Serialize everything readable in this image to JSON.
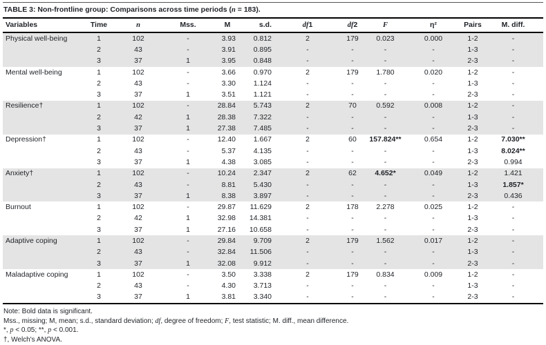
{
  "title": {
    "label": "TABLE 3:",
    "pre": " Non-frontline group: Comparisons across time periods (",
    "n": "n",
    "post": " = 183)."
  },
  "table": {
    "headers": {
      "variables": "Variables",
      "time": "Time",
      "n": "n",
      "mss": "Mss.",
      "m": "M",
      "sd": "s.d.",
      "df": "df",
      "df1_num": "1",
      "df2_num": "2",
      "f": "F",
      "eta": "η²",
      "pairs": "Pairs",
      "mdiff": "M. diff."
    },
    "columns_order": [
      "time",
      "n",
      "mss",
      "m",
      "sd",
      "df1",
      "df2",
      "f",
      "eta2",
      "pairs",
      "mdiff"
    ],
    "groups": [
      {
        "variable": "Physical well-being",
        "shaded": true,
        "rows": [
          [
            "1",
            "102",
            "-",
            "3.93",
            "0.812",
            "2",
            "179",
            "0.023",
            "0.000",
            "1-2",
            "-"
          ],
          [
            "2",
            "43",
            "-",
            "3.91",
            "0.895",
            "-",
            "-",
            "-",
            "-",
            "1-3",
            "-"
          ],
          [
            "3",
            "37",
            "1",
            "3.95",
            "0.848",
            "-",
            "-",
            "-",
            "-",
            "2-3",
            "-"
          ]
        ]
      },
      {
        "variable": "Mental well-being",
        "shaded": false,
        "rows": [
          [
            "1",
            "102",
            "-",
            "3.66",
            "0.970",
            "2",
            "179",
            "1.780",
            "0.020",
            "1-2",
            "-"
          ],
          [
            "2",
            "43",
            "-",
            "3.30",
            "1.124",
            "-",
            "-",
            "-",
            "-",
            "1-3",
            "-"
          ],
          [
            "3",
            "37",
            "1",
            "3.51",
            "1.121",
            "-",
            "-",
            "-",
            "-",
            "2-3",
            "-"
          ]
        ]
      },
      {
        "variable": "Resilience†",
        "shaded": true,
        "rows": [
          [
            "1",
            "102",
            "-",
            "28.84",
            "5.743",
            "2",
            "70",
            "0.592",
            "0.008",
            "1-2",
            "-"
          ],
          [
            "2",
            "42",
            "1",
            "28.38",
            "7.322",
            "-",
            "-",
            "-",
            "-",
            "1-3",
            "-"
          ],
          [
            "3",
            "37",
            "1",
            "27.38",
            "7.485",
            "-",
            "-",
            "-",
            "-",
            "2-3",
            "-"
          ]
        ]
      },
      {
        "variable": "Depression†",
        "shaded": false,
        "rows": [
          [
            "1",
            "102",
            "-",
            "12.40",
            "1.667",
            "2",
            "60",
            {
              "v": "157.824**",
              "b": true
            },
            "0.654",
            "1-2",
            {
              "v": "7.030**",
              "b": true
            }
          ],
          [
            "2",
            "43",
            "-",
            "5.37",
            "4.135",
            "-",
            "-",
            "-",
            "-",
            "1-3",
            {
              "v": "8.024**",
              "b": true
            }
          ],
          [
            "3",
            "37",
            "1",
            "4.38",
            "3.085",
            "-",
            "-",
            "-",
            "-",
            "2-3",
            "0.994"
          ]
        ]
      },
      {
        "variable": "Anxiety†",
        "shaded": true,
        "rows": [
          [
            "1",
            "102",
            "-",
            "10.24",
            "2.347",
            "2",
            "62",
            {
              "v": "4.652*",
              "b": true
            },
            "0.049",
            "1-2",
            "1.421"
          ],
          [
            "2",
            "43",
            "-",
            "8.81",
            "5.430",
            "-",
            "-",
            "-",
            "-",
            "1-3",
            {
              "v": "1.857*",
              "b": true
            }
          ],
          [
            "3",
            "37",
            "1",
            "8.38",
            "3.897",
            "-",
            "-",
            "-",
            "-",
            "2-3",
            "0.436"
          ]
        ]
      },
      {
        "variable": "Burnout",
        "shaded": false,
        "rows": [
          [
            "1",
            "102",
            "-",
            "29.87",
            "11.629",
            "2",
            "178",
            "2.278",
            "0.025",
            "1-2",
            "-"
          ],
          [
            "2",
            "42",
            "1",
            "32.98",
            "14.381",
            "-",
            "-",
            "-",
            "-",
            "1-3",
            "-"
          ],
          [
            "3",
            "37",
            "1",
            "27.16",
            "10.658",
            "-",
            "-",
            "-",
            "-",
            "2-3",
            "-"
          ]
        ]
      },
      {
        "variable": "Adaptive coping",
        "shaded": true,
        "rows": [
          [
            "1",
            "102",
            "-",
            "29.84",
            "9.709",
            "2",
            "179",
            "1.562",
            "0.017",
            "1-2",
            "-"
          ],
          [
            "2",
            "43",
            "-",
            "32.84",
            "11.506",
            "-",
            "-",
            "-",
            "-",
            "1-3",
            "-"
          ],
          [
            "3",
            "37",
            "1",
            "32.08",
            "9.912",
            "-",
            "-",
            "-",
            "-",
            "2-3",
            "-"
          ]
        ]
      },
      {
        "variable": "Maladaptive coping",
        "shaded": false,
        "rows": [
          [
            "1",
            "102",
            "-",
            "3.50",
            "3.338",
            "2",
            "179",
            "0.834",
            "0.009",
            "1-2",
            "-"
          ],
          [
            "2",
            "43",
            "-",
            "4.30",
            "3.713",
            "-",
            "-",
            "-",
            "-",
            "1-3",
            "-"
          ],
          [
            "3",
            "37",
            "1",
            "3.81",
            "3.340",
            "-",
            "-",
            "-",
            "-",
            "2-3",
            "-"
          ]
        ]
      }
    ]
  },
  "notes": {
    "line1": "Note: Bold data is significant.",
    "line2_p1": "Mss., missing; M, mean; s.d., standard deviation; ",
    "line2_df": "df",
    "line2_p2": ", degree of freedom; ",
    "line2_f": "F",
    "line2_p3": ", test statistic; M. diff., mean difference.",
    "line3_p1": "*, ",
    "line3_pa": "p",
    "line3_p2": " < 0.05; **, ",
    "line3_pb": "p",
    "line3_p3": " < 0.001.",
    "line4": "†, Welch's ANOVA."
  }
}
